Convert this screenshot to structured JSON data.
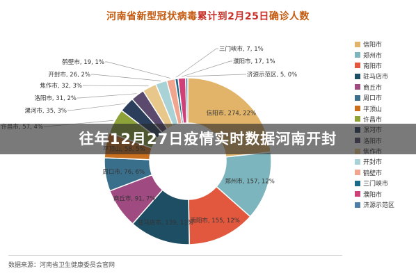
{
  "title": {
    "part1": "河南省新型冠状病毒",
    "part2": "累计到2月25日",
    "part3": "确诊人数"
  },
  "banner": "往年12月27日疫情实时数据河南开封",
  "source": "数据来源：河南省卫生健康委员会官网",
  "chart_data": {
    "type": "pie",
    "variant": "donut",
    "legend_position": "right",
    "slices": [
      {
        "name": "信阳市",
        "value": 274,
        "label": "信阳市, 274, 22%",
        "color": "#e2b46a"
      },
      {
        "name": "郑州市",
        "value": 157,
        "label": "郑州市, 157, 12%",
        "color": "#7cb5bd"
      },
      {
        "name": "南阳市",
        "value": 155,
        "label": "南阳市, 155, 12%",
        "color": "#e2583e"
      },
      {
        "name": "驻马店市",
        "value": 139,
        "label": "驻马店市, 139, 11%",
        "color": "#1e4e63"
      },
      {
        "name": "商丘市",
        "value": 91,
        "label": "商丘市, 91, 7%",
        "color": "#a04a82"
      },
      {
        "name": "周口市",
        "value": 76,
        "label": "周口市, 76, 6%",
        "color": "#3a6f8c"
      },
      {
        "name": "平顶山",
        "value": 58,
        "label": "平顶山, 58, 5%",
        "color": "#c9701e"
      },
      {
        "name": "许昌市",
        "value": 57,
        "label": "许昌市, 57, 4%",
        "color": "#8da33a"
      },
      {
        "name": "漯河市",
        "value": 35,
        "label": "漯河市, 35, 3%",
        "color": "#2b3f5c"
      },
      {
        "name": "洛阳市",
        "value": 31,
        "label": "洛阳市, 31, 2%",
        "color": "#5b4a6e"
      },
      {
        "name": "焦作市",
        "value": 32,
        "label": "焦作市, 32, 3%",
        "color": "#e8c88a"
      },
      {
        "name": "开封市",
        "value": 26,
        "label": "开封市, 26, 2%",
        "color": "#a8d2d6"
      },
      {
        "name": "鹤壁市",
        "value": 19,
        "label": "鹤壁市, 19, 1%",
        "color": "#f0a58e"
      },
      {
        "name": "三门峡市",
        "value": 7,
        "label": "三门峡市, 7, 1%",
        "color": "#1c6a8a"
      },
      {
        "name": "濮阳市",
        "value": 17,
        "label": "濮阳市, 17, 1%",
        "color": "#cf3f78"
      },
      {
        "name": "济源示范区",
        "value": 5,
        "label": "济源示范区, 5, 0%",
        "color": "#4f7fa8"
      }
    ]
  }
}
